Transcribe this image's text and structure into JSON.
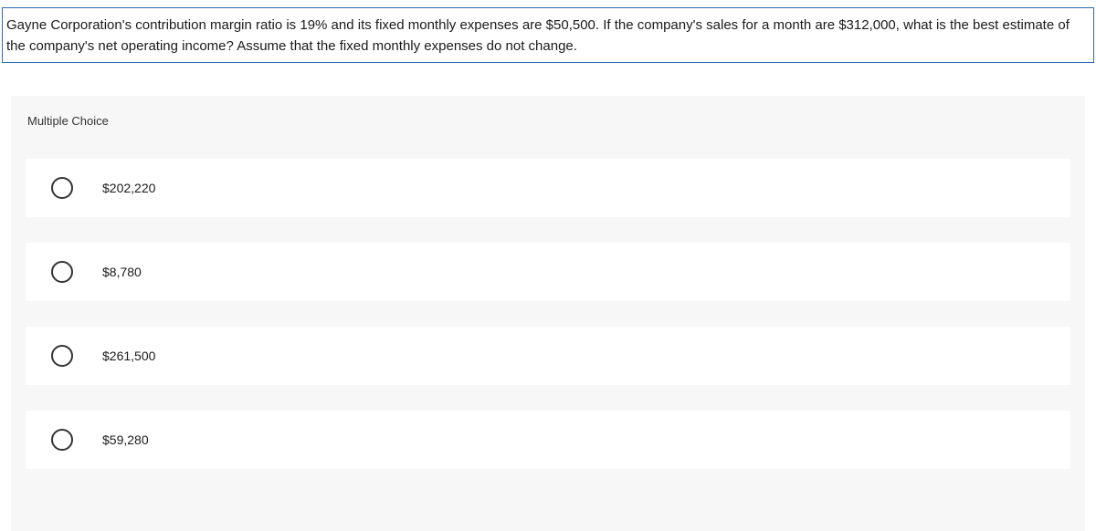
{
  "question": {
    "text": "Gayne Corporation's contribution margin ratio is 19% and its fixed monthly expenses are $50,500. If the company's sales for a month are $312,000, what is the best estimate of the company's net operating income? Assume that the fixed monthly expenses do not change.",
    "border_color": "#2b6cb0",
    "text_color": "#1a1a1a",
    "fontsize": 15
  },
  "multiple_choice": {
    "header": "Multiple Choice",
    "header_fontsize": 13,
    "options": [
      {
        "label": "$202,220",
        "selected": false
      },
      {
        "label": "$8,780",
        "selected": false
      },
      {
        "label": "$261,500",
        "selected": false
      },
      {
        "label": "$59,280",
        "selected": false
      }
    ],
    "option_fontsize": 14,
    "option_bg": "#ffffff",
    "panel_bg": "#f7f7f7",
    "radio_border": "#333333",
    "radio_size": 24
  }
}
